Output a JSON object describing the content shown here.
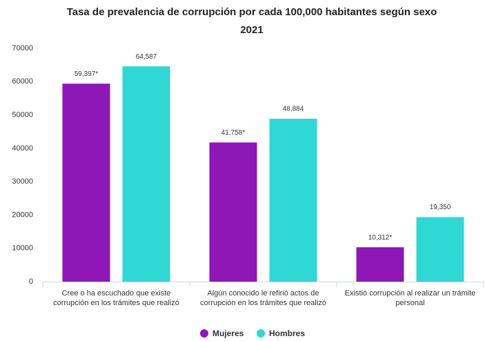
{
  "chart_data": {
    "type": "bar",
    "title": "Tasa de prevalencia de corrupción por cada 100,000 habitantes según sexo",
    "subtitle": "2021",
    "categories": [
      [
        "Cree o ha escuchado que existe",
        "corrupción en los trámites que realizó"
      ],
      [
        "Algún conocido le refirió actos de",
        "corrupción en los trámites que realizó"
      ],
      [
        "Existió corrupción al realizar un trámite",
        "personal"
      ]
    ],
    "series": [
      {
        "name": "Mujeres",
        "color": "#8e17b5",
        "values": [
          59397,
          41758,
          10312
        ],
        "value_labels": [
          "59,397*",
          "41,758*",
          "10,312*"
        ]
      },
      {
        "name": "Hombres",
        "color": "#2ed8d4",
        "values": [
          64587,
          48884,
          19350
        ],
        "value_labels": [
          "64,587",
          "48,884",
          "19,350"
        ]
      }
    ],
    "ylim": [
      0,
      70000
    ],
    "yticks": [
      0,
      10000,
      20000,
      30000,
      40000,
      50000,
      60000,
      70000
    ],
    "grid": false,
    "legend": "bottom"
  }
}
